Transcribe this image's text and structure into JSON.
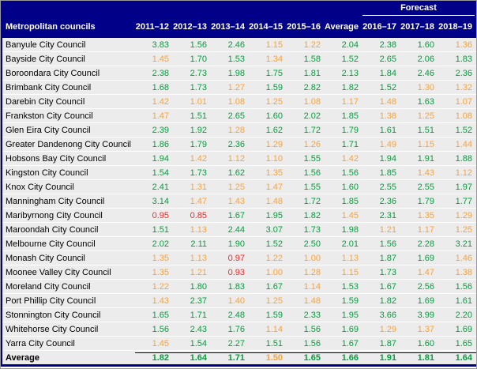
{
  "header": {
    "row_label": "Metropolitan councils",
    "forecast_label": "Forecast",
    "columns": [
      "2011–12",
      "2012–13",
      "2013–14",
      "2014–15",
      "2015–16",
      "Average",
      "2016–17",
      "2017–18",
      "2018–19"
    ],
    "forecast_column_count": 3
  },
  "colors": {
    "header_bg": "#000088",
    "row_bg": "#ececec",
    "green": "#00A03C",
    "orange": "#FFA033",
    "red": "#FF2222",
    "rule_line": "#000000"
  },
  "thresholds": {
    "green_above": 1.5,
    "red_below": 1.0
  },
  "rows": [
    {
      "name": "Banyule City Council",
      "values": [
        "3.83",
        "1.56",
        "2.46",
        "1.15",
        "1.22",
        "2.04",
        "2.38",
        "1.60",
        "1.36"
      ]
    },
    {
      "name": "Bayside City Council",
      "values": [
        "1.45",
        "1.70",
        "1.53",
        "1.34",
        "1.58",
        "1.52",
        "2.65",
        "2.06",
        "1.83"
      ]
    },
    {
      "name": "Boroondara City Council",
      "values": [
        "2.38",
        "2.73",
        "1.98",
        "1.75",
        "1.81",
        "2.13",
        "1.84",
        "2.46",
        "2.36"
      ]
    },
    {
      "name": "Brimbank City Council",
      "values": [
        "1.68",
        "1.73",
        "1.27",
        "1.59",
        "2.82",
        "1.82",
        "1.52",
        "1.30",
        "1.32"
      ]
    },
    {
      "name": "Darebin City Council",
      "values": [
        "1.42",
        "1.01",
        "1.08",
        "1.25",
        "1.08",
        "1.17",
        "1.48",
        "1.63",
        "1.07"
      ]
    },
    {
      "name": "Frankston City Council",
      "values": [
        "1.47",
        "1.51",
        "2.65",
        "1.60",
        "2.02",
        "1.85",
        "1.38",
        "1.25",
        "1.08"
      ]
    },
    {
      "name": "Glen Eira City Council",
      "values": [
        "2.39",
        "1.92",
        "1.28",
        "1.62",
        "1.72",
        "1.79",
        "1.61",
        "1.51",
        "1.52"
      ]
    },
    {
      "name": "Greater Dandenong City Council",
      "values": [
        "1.86",
        "1.79",
        "2.36",
        "1.29",
        "1.26",
        "1.71",
        "1.49",
        "1.15",
        "1.44"
      ]
    },
    {
      "name": "Hobsons Bay City Council",
      "values": [
        "1.94",
        "1.42",
        "1.12",
        "1.10",
        "1.55",
        "1.42",
        "1.94",
        "1.91",
        "1.88"
      ]
    },
    {
      "name": "Kingston City Council",
      "values": [
        "1.54",
        "1.73",
        "1.62",
        "1.35",
        "1.56",
        "1.56",
        "1.85",
        "1.43",
        "1.12"
      ]
    },
    {
      "name": "Knox City Council",
      "values": [
        "2.41",
        "1.31",
        "1.25",
        "1.47",
        "1.55",
        "1.60",
        "2.55",
        "2.55",
        "1.97"
      ]
    },
    {
      "name": "Manningham City Council",
      "values": [
        "3.14",
        "1.47",
        "1.43",
        "1.48",
        "1.72",
        "1.85",
        "2.36",
        "1.79",
        "1.77"
      ]
    },
    {
      "name": "Maribyrnong City Council",
      "values": [
        "0.95",
        "0.85",
        "1.67",
        "1.95",
        "1.82",
        "1.45",
        "2.31",
        "1.35",
        "1.29"
      ]
    },
    {
      "name": "Maroondah City Council",
      "values": [
        "1.51",
        "1.13",
        "2.44",
        "3.07",
        "1.73",
        "1.98",
        "1.21",
        "1.17",
        "1.25"
      ]
    },
    {
      "name": "Melbourne City Council",
      "values": [
        "2.02",
        "2.11",
        "1.90",
        "1.52",
        "2.50",
        "2.01",
        "1.56",
        "2.28",
        "3.21"
      ]
    },
    {
      "name": "Monash City Council",
      "values": [
        "1.35",
        "1.13",
        "0.97",
        "1.22",
        "1.00",
        "1.13",
        "1.87",
        "1.69",
        "1.46"
      ]
    },
    {
      "name": "Moonee Valley City Council",
      "values": [
        "1.35",
        "1.21",
        "0.93",
        "1.00",
        "1.28",
        "1.15",
        "1.73",
        "1.47",
        "1.38"
      ]
    },
    {
      "name": "Moreland City Council",
      "values": [
        "1.22",
        "1.80",
        "1.83",
        "1.67",
        "1.14",
        "1.53",
        "1.67",
        "2.56",
        "1.56"
      ]
    },
    {
      "name": "Port Phillip City Council",
      "values": [
        "1.43",
        "2.37",
        "1.40",
        "1.25",
        "1.48",
        "1.59",
        "1.82",
        "1.69",
        "1.61"
      ]
    },
    {
      "name": "Stonnington City Council",
      "values": [
        "1.65",
        "1.71",
        "2.48",
        "1.59",
        "2.33",
        "1.95",
        "3.66",
        "3.99",
        "2.20"
      ]
    },
    {
      "name": "Whitehorse City Council",
      "values": [
        "1.56",
        "2.43",
        "1.76",
        "1.14",
        "1.56",
        "1.69",
        "1.29",
        "1.37",
        "1.69"
      ]
    },
    {
      "name": "Yarra City Council",
      "values": [
        "1.45",
        "1.54",
        "2.27",
        "1.51",
        "1.56",
        "1.67",
        "1.87",
        "1.60",
        "1.65"
      ]
    }
  ],
  "average_row": {
    "name": "Average",
    "values": [
      "1.82",
      "1.64",
      "1.71",
      "1.50",
      "1.65",
      "1.66",
      "1.91",
      "1.81",
      "1.64"
    ]
  }
}
